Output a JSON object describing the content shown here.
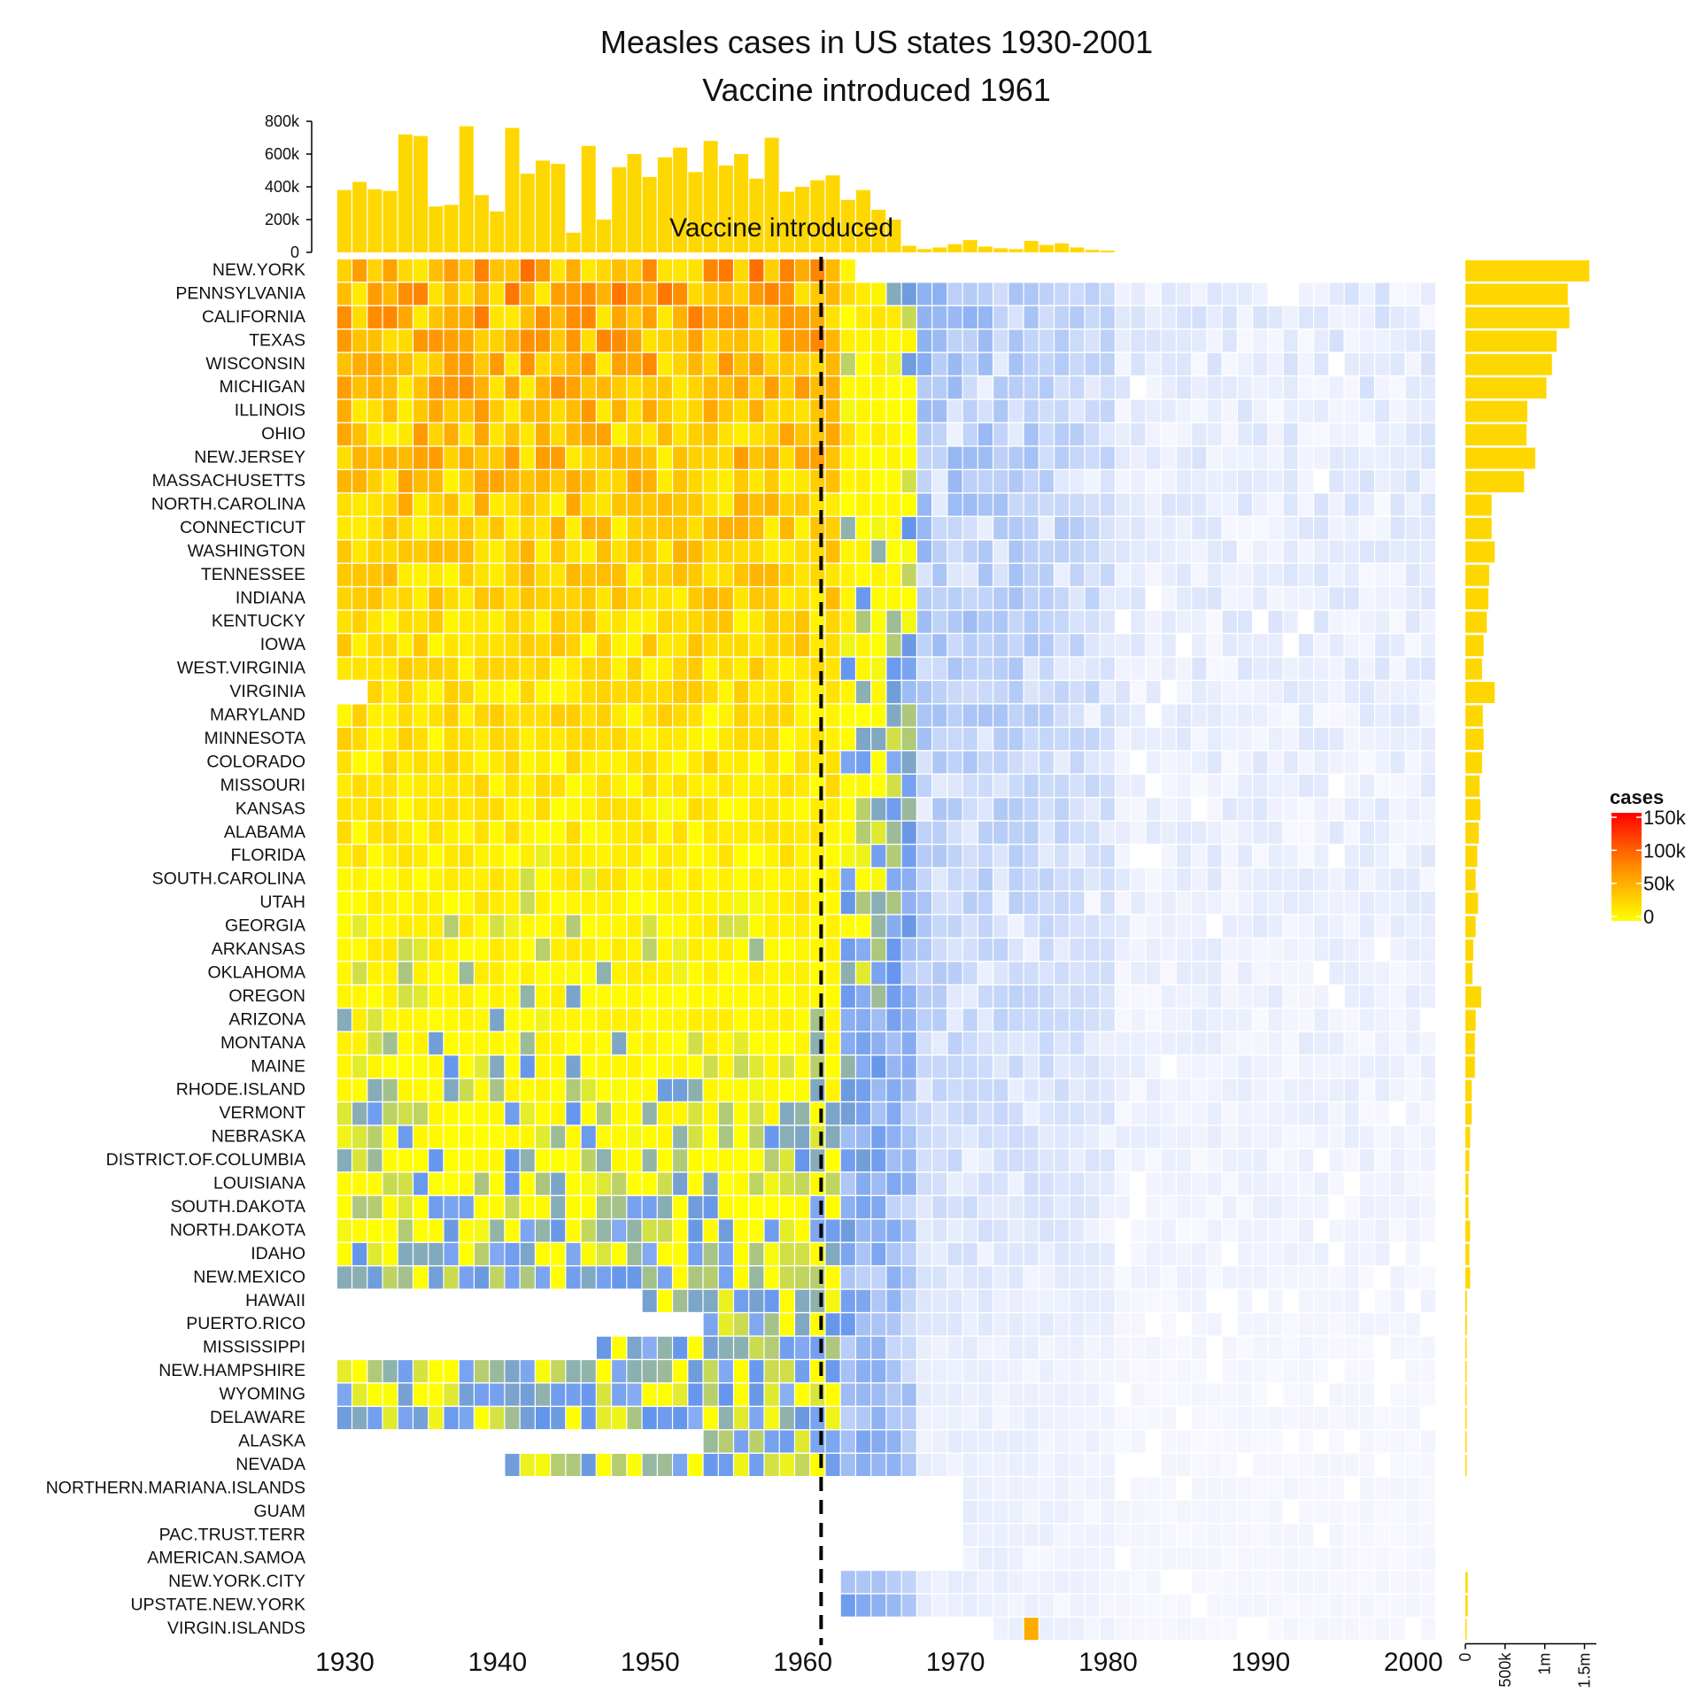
{
  "chart_data": {
    "type": "heatmap",
    "title": "Measles cases in US states 1930-2001",
    "subtitle": "Vaccine introduced 1961",
    "annotation": {
      "text": "Vaccine introduced",
      "x": 1961
    },
    "x_ticks": [
      "1930",
      "1940",
      "1950",
      "1960",
      "1970",
      "1980",
      "1990",
      "2000"
    ],
    "xlim": [
      1928,
      2003
    ],
    "states": [
      "NEW.YORK",
      "PENNSYLVANIA",
      "CALIFORNIA",
      "TEXAS",
      "WISCONSIN",
      "MICHIGAN",
      "ILLINOIS",
      "OHIO",
      "NEW.JERSEY",
      "MASSACHUSETTS",
      "NORTH.CAROLINA",
      "CONNECTICUT",
      "WASHINGTON",
      "TENNESSEE",
      "INDIANA",
      "KENTUCKY",
      "IOWA",
      "WEST.VIRGINIA",
      "VIRGINIA",
      "MARYLAND",
      "MINNESOTA",
      "COLORADO",
      "MISSOURI",
      "KANSAS",
      "ALABAMA",
      "FLORIDA",
      "SOUTH.CAROLINA",
      "UTAH",
      "GEORGIA",
      "ARKANSAS",
      "OKLAHOMA",
      "OREGON",
      "ARIZONA",
      "MONTANA",
      "MAINE",
      "RHODE.ISLAND",
      "VERMONT",
      "NEBRASKA",
      "DISTRICT.OF.COLUMBIA",
      "LOUISIANA",
      "SOUTH.DAKOTA",
      "NORTH.DAKOTA",
      "IDAHO",
      "NEW.MEXICO",
      "HAWAII",
      "PUERTO.RICO",
      "MISSISSIPPI",
      "NEW.HAMPSHIRE",
      "WYOMING",
      "DELAWARE",
      "ALASKA",
      "NEVADA",
      "NORTHERN.MARIANA.ISLANDS",
      "GUAM",
      "PAC.TRUST.TERR",
      "AMERICAN.SAMOA",
      "NEW.YORK.CITY",
      "UPSTATE.NEW.YORK",
      "VIRGIN.ISLANDS"
    ],
    "state_totals": [
      1560000.0,
      1290000.0,
      1310000.0,
      1150000.0,
      1090000.0,
      1020000.0,
      780000.0,
      770000.0,
      880000.0,
      740000.0,
      330000.0,
      330000.0,
      370000.0,
      300000.0,
      290000.0,
      270000.0,
      230000.0,
      210000.0,
      370000.0,
      220000.0,
      230000.0,
      210000.0,
      180000.0,
      190000.0,
      170000.0,
      150000.0,
      130000.0,
      160000.0,
      130000.0,
      100000.0,
      90000.0,
      200000.0,
      130000.0,
      120000.0,
      120000.0,
      80000.0,
      80000.0,
      60000.0,
      50000.0,
      40000.0,
      40000.0,
      60000.0,
      50000.0,
      60000.0,
      20000.0,
      20000.0,
      10000.0,
      10000.0,
      10000.0,
      10000.0,
      5000.0,
      4000.0,
      0.0,
      0.0,
      0.0,
      0.0,
      30000.0,
      30000.0,
      2000.0
    ],
    "annual_totals": {
      "years": [
        1930,
        1931,
        1932,
        1933,
        1934,
        1935,
        1936,
        1937,
        1938,
        1939,
        1940,
        1941,
        1942,
        1943,
        1944,
        1945,
        1946,
        1947,
        1948,
        1949,
        1950,
        1951,
        1952,
        1953,
        1954,
        1955,
        1956,
        1957,
        1958,
        1959,
        1960,
        1961,
        1962,
        1963,
        1964,
        1965,
        1966,
        1967,
        1968,
        1969,
        1970,
        1971,
        1972,
        1973,
        1974,
        1975,
        1976,
        1977,
        1978,
        1979,
        1980
      ],
      "values": [
        380000,
        430000,
        385000,
        375000,
        720000,
        710000,
        280000,
        290000,
        770000,
        350000,
        250000,
        760000,
        480000,
        560000,
        540000,
        120000,
        650000,
        200000,
        520000,
        600000,
        460000,
        580000,
        640000,
        490000,
        680000,
        530000,
        600000,
        450000,
        700000,
        370000,
        400000,
        440000,
        470000,
        320000,
        380000,
        260000,
        200000,
        40000,
        20000,
        30000,
        50000,
        75000,
        35000,
        25000,
        20000,
        70000,
        45000,
        55000,
        30000,
        15000,
        10000
      ]
    },
    "yearly_ylim": [
      0,
      800000
    ],
    "yearly_y_ticks": [
      "0",
      "200k",
      "400k",
      "600k",
      "800k"
    ],
    "totals_x_ticks": [
      "0",
      "500k",
      "1m",
      "1.5m"
    ],
    "totals_xlim": [
      0,
      1650000
    ],
    "legend": {
      "title": "cases",
      "labels": [
        "150k",
        "100k",
        "50k",
        "0"
      ],
      "max": 150000
    },
    "colors": {
      "bar": "#FFD700",
      "zero": "#F8F8FF",
      "low": "#6495ED",
      "mid": "#FFFF00",
      "high": "#FF0000",
      "vaccine_line": "#000000"
    },
    "cell_data_note": "per-cell values reconstructed procedurally in render script"
  }
}
